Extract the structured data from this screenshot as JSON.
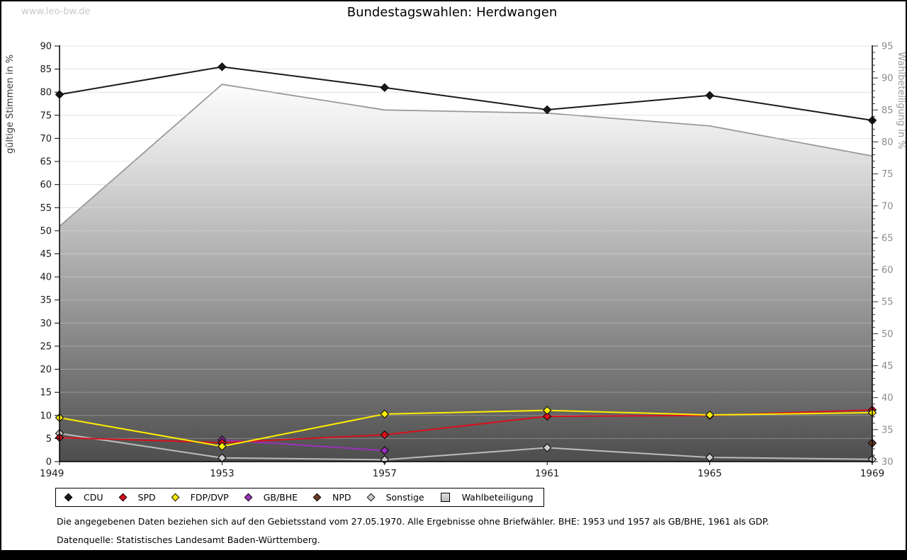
{
  "watermark": "www.leo-bw.de",
  "title": "Bundestagswahlen: Herdwangen",
  "axes": {
    "left_label": "gültige Stimmen in %",
    "right_label": "Wahlbeteiligung in %",
    "left_ticks": [
      0,
      5,
      10,
      15,
      20,
      25,
      30,
      35,
      40,
      45,
      50,
      55,
      60,
      65,
      70,
      75,
      80,
      85,
      90
    ],
    "right_ticks": [
      30,
      35,
      40,
      45,
      50,
      55,
      60,
      65,
      70,
      75,
      80,
      85,
      90,
      95
    ],
    "x_ticks": [
      "1949",
      "1953",
      "1957",
      "1961",
      "1965",
      "1969"
    ]
  },
  "chart_data": {
    "type": "line",
    "x": [
      1949,
      1953,
      1957,
      1961,
      1965,
      1969
    ],
    "left_axis": {
      "label": "gültige Stimmen in %",
      "min": 0,
      "max": 90,
      "step": 5
    },
    "right_axis": {
      "label": "Wahlbeteiligung in %",
      "min": 30,
      "max": 95,
      "step": 5,
      "minor_step": 1
    },
    "grid": "horizontal",
    "legend_position": "bottom",
    "series": [
      {
        "name": "CDU",
        "type": "line",
        "axis": "left",
        "line_color": "#1a1a1a",
        "marker_color": "#1a1a1a",
        "z": 6,
        "values": [
          79.5,
          85.5,
          81.0,
          76.2,
          79.3,
          73.9
        ]
      },
      {
        "name": "SPD",
        "type": "line",
        "axis": "left",
        "line_color": "#d8101c",
        "marker_color": "#d8101c",
        "z": 3,
        "values": [
          5.2,
          4.1,
          5.8,
          9.8,
          10.0,
          11.2
        ]
      },
      {
        "name": "FDP/DVP",
        "type": "line",
        "axis": "left",
        "line_color": "#ffee00",
        "marker_color": "#ffee00",
        "z": 4,
        "values": [
          9.5,
          3.3,
          10.3,
          11.1,
          10.1,
          10.6
        ]
      },
      {
        "name": "GB/BHE",
        "type": "line",
        "axis": "left",
        "line_color": "#9932b8",
        "marker_color": "#9932b8",
        "z": 2,
        "values": [
          null,
          4.7,
          2.4,
          null,
          null,
          null
        ]
      },
      {
        "name": "NPD",
        "type": "line",
        "axis": "left",
        "line_color": "#6b3d26",
        "marker_color": "#6b3d26",
        "z": 5,
        "values": [
          null,
          null,
          null,
          null,
          null,
          4.0
        ]
      },
      {
        "name": "Sonstige",
        "type": "line",
        "axis": "left",
        "line_color": "#bbbbbb",
        "marker_color": "#cdcdcd",
        "z": 1,
        "values": [
          6.1,
          0.8,
          0.4,
          3.0,
          0.9,
          0.5
        ]
      },
      {
        "name": "Wahlbeteiligung",
        "type": "area",
        "axis": "right",
        "line_color": "#999999",
        "fill_top": "#fdfdfd",
        "fill_bottom": "#4d4d4d",
        "z": 0,
        "values": [
          66.8,
          89.0,
          85.0,
          84.5,
          82.5,
          77.8
        ]
      }
    ]
  },
  "legend": {
    "items": [
      {
        "label": "CDU",
        "color": "#1a1a1a",
        "shape": "diamond"
      },
      {
        "label": "SPD",
        "color": "#d8101c",
        "shape": "diamond"
      },
      {
        "label": "FDP/DVP",
        "color": "#ffee00",
        "shape": "diamond"
      },
      {
        "label": "GB/BHE",
        "color": "#9932b8",
        "shape": "diamond"
      },
      {
        "label": "NPD",
        "color": "#6b3d26",
        "shape": "diamond"
      },
      {
        "label": "Sonstige",
        "color": "#cdcdcd",
        "shape": "diamond"
      },
      {
        "label": "Wahlbeteiligung",
        "color": "#c9c9c9",
        "shape": "square"
      }
    ]
  },
  "footnotes": [
    "Die angegebenen Daten beziehen sich auf den Gebietsstand vom 27.05.1970. Alle Ergebnisse ohne Briefwähler. BHE: 1953 und 1957 als GB/BHE, 1961 als GDP.",
    "Datenquelle: Statistisches Landesamt Baden-Württemberg."
  ],
  "colors": {
    "grid": "#d9d9d9",
    "axis": "#000000",
    "left_tick_text": "#1a1a1a",
    "right_tick_text": "#8c8c8c",
    "left_axis_title": "#3c3c3c",
    "right_axis_title": "#9a9a9a",
    "watermark": "#c9c9c9"
  }
}
